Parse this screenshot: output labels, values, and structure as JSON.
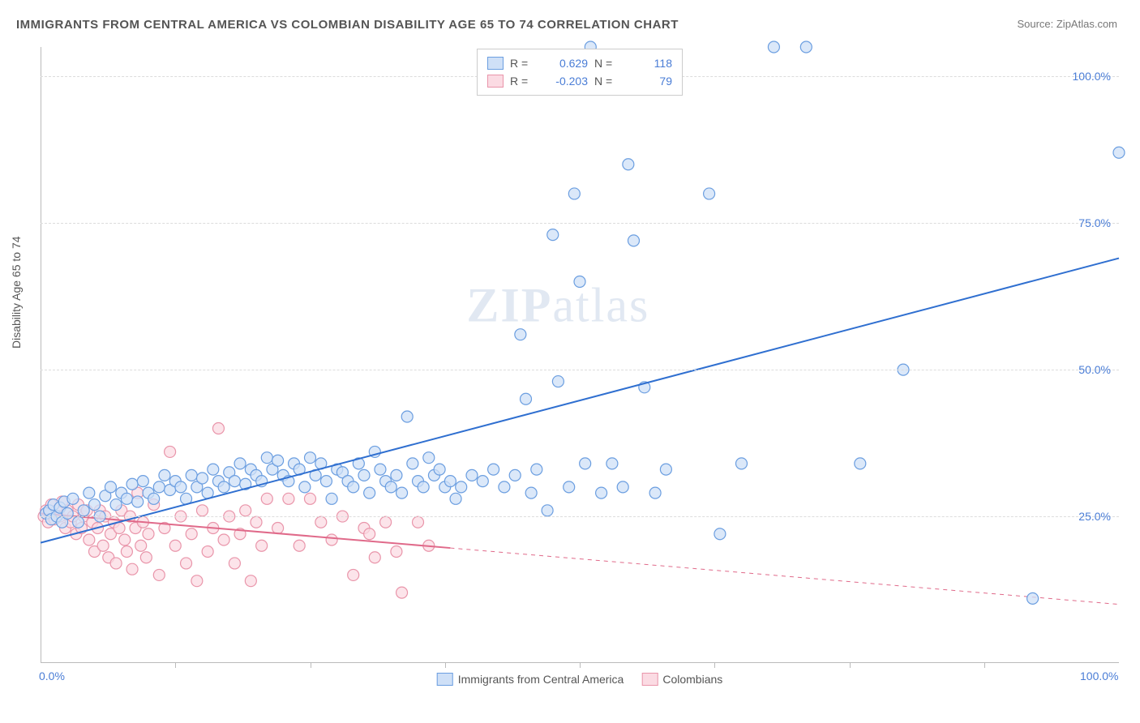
{
  "title": "IMMIGRANTS FROM CENTRAL AMERICA VS COLOMBIAN DISABILITY AGE 65 TO 74 CORRELATION CHART",
  "source": "Source: ZipAtlas.com",
  "ylabel": "Disability Age 65 to 74",
  "watermark_a": "ZIP",
  "watermark_b": "atlas",
  "chart": {
    "type": "scatter",
    "xlim": [
      0,
      100
    ],
    "ylim": [
      0,
      105
    ],
    "ytick_labels": [
      "25.0%",
      "50.0%",
      "75.0%",
      "100.0%"
    ],
    "ytick_values": [
      25,
      50,
      75,
      100
    ],
    "xtick_labels": [
      "0.0%",
      "100.0%"
    ],
    "xtick_values": [
      0,
      100
    ],
    "xtick_minor": [
      12.5,
      25,
      37.5,
      50,
      62.5,
      75,
      87.5
    ],
    "grid_color": "#dcdcdc",
    "axis_color": "#bbbbbb",
    "text_color_axis": "#4a7dd6",
    "marker_radius": 7,
    "marker_stroke_width": 1.2,
    "line_width": 2
  },
  "series_a": {
    "name": "Immigrants from Central America",
    "r_value": "0.629",
    "n_value": "118",
    "fill": "#cfe0f7",
    "stroke": "#6b9ee0",
    "line_color": "#2f6fd0",
    "trend": {
      "x1": 0,
      "y1": 20.5,
      "x2": 100,
      "y2": 69,
      "solid_until_x": 100
    },
    "points": [
      [
        0.5,
        25.5
      ],
      [
        0.8,
        26
      ],
      [
        1,
        24.5
      ],
      [
        1.2,
        27
      ],
      [
        1.5,
        25
      ],
      [
        1.8,
        26.5
      ],
      [
        2,
        24
      ],
      [
        2.2,
        27.5
      ],
      [
        2.5,
        25.5
      ],
      [
        3,
        28
      ],
      [
        3.5,
        24
      ],
      [
        4,
        26
      ],
      [
        4.5,
        29
      ],
      [
        5,
        27
      ],
      [
        5.5,
        25
      ],
      [
        6,
        28.5
      ],
      [
        6.5,
        30
      ],
      [
        7,
        27
      ],
      [
        7.5,
        29
      ],
      [
        8,
        28
      ],
      [
        8.5,
        30.5
      ],
      [
        9,
        27.5
      ],
      [
        9.5,
        31
      ],
      [
        10,
        29
      ],
      [
        10.5,
        28
      ],
      [
        11,
        30
      ],
      [
        11.5,
        32
      ],
      [
        12,
        29.5
      ],
      [
        12.5,
        31
      ],
      [
        13,
        30
      ],
      [
        13.5,
        28
      ],
      [
        14,
        32
      ],
      [
        14.5,
        30
      ],
      [
        15,
        31.5
      ],
      [
        15.5,
        29
      ],
      [
        16,
        33
      ],
      [
        16.5,
        31
      ],
      [
        17,
        30
      ],
      [
        17.5,
        32.5
      ],
      [
        18,
        31
      ],
      [
        18.5,
        34
      ],
      [
        19,
        30.5
      ],
      [
        19.5,
        33
      ],
      [
        20,
        32
      ],
      [
        20.5,
        31
      ],
      [
        21,
        35
      ],
      [
        21.5,
        33
      ],
      [
        22,
        34.5
      ],
      [
        22.5,
        32
      ],
      [
        23,
        31
      ],
      [
        23.5,
        34
      ],
      [
        24,
        33
      ],
      [
        24.5,
        30
      ],
      [
        25,
        35
      ],
      [
        25.5,
        32
      ],
      [
        26,
        34
      ],
      [
        26.5,
        31
      ],
      [
        27,
        28
      ],
      [
        27.5,
        33
      ],
      [
        28,
        32.5
      ],
      [
        28.5,
        31
      ],
      [
        29,
        30
      ],
      [
        29.5,
        34
      ],
      [
        30,
        32
      ],
      [
        30.5,
        29
      ],
      [
        31,
        36
      ],
      [
        31.5,
        33
      ],
      [
        32,
        31
      ],
      [
        32.5,
        30
      ],
      [
        33,
        32
      ],
      [
        33.5,
        29
      ],
      [
        34,
        42
      ],
      [
        34.5,
        34
      ],
      [
        35,
        31
      ],
      [
        35.5,
        30
      ],
      [
        36,
        35
      ],
      [
        36.5,
        32
      ],
      [
        37,
        33
      ],
      [
        37.5,
        30
      ],
      [
        38,
        31
      ],
      [
        38.5,
        28
      ],
      [
        39,
        30
      ],
      [
        40,
        32
      ],
      [
        41,
        31
      ],
      [
        42,
        33
      ],
      [
        43,
        30
      ],
      [
        44,
        32
      ],
      [
        44.5,
        56
      ],
      [
        45,
        45
      ],
      [
        45.5,
        29
      ],
      [
        46,
        33
      ],
      [
        47,
        26
      ],
      [
        47.5,
        73
      ],
      [
        48,
        48
      ],
      [
        49,
        30
      ],
      [
        49.5,
        80
      ],
      [
        50,
        65
      ],
      [
        50.5,
        34
      ],
      [
        51,
        105
      ],
      [
        52,
        29
      ],
      [
        53,
        34
      ],
      [
        54,
        30
      ],
      [
        54.5,
        85
      ],
      [
        55,
        72
      ],
      [
        56,
        47
      ],
      [
        57,
        29
      ],
      [
        58,
        33
      ],
      [
        62,
        80
      ],
      [
        63,
        22
      ],
      [
        65,
        34
      ],
      [
        68,
        105
      ],
      [
        71,
        105
      ],
      [
        76,
        34
      ],
      [
        80,
        50
      ],
      [
        92,
        11
      ],
      [
        100,
        87
      ]
    ]
  },
  "series_b": {
    "name": "Colombians",
    "r_value": "-0.203",
    "n_value": "79",
    "fill": "#fbdbe3",
    "stroke": "#e995aa",
    "line_color": "#e06a8a",
    "trend": {
      "x1": 0,
      "y1": 25.5,
      "x2": 100,
      "y2": 10,
      "solid_until_x": 38
    },
    "points": [
      [
        0.3,
        25
      ],
      [
        0.5,
        26
      ],
      [
        0.7,
        24
      ],
      [
        0.9,
        25.5
      ],
      [
        1,
        27
      ],
      [
        1.3,
        24.5
      ],
      [
        1.5,
        26
      ],
      [
        1.8,
        25
      ],
      [
        2,
        27.5
      ],
      [
        2.3,
        23
      ],
      [
        2.5,
        26
      ],
      [
        2.8,
        24
      ],
      [
        3,
        25
      ],
      [
        3.3,
        22
      ],
      [
        3.5,
        27
      ],
      [
        3.8,
        23
      ],
      [
        4,
        25
      ],
      [
        4.3,
        26
      ],
      [
        4.5,
        21
      ],
      [
        4.8,
        24
      ],
      [
        5,
        19
      ],
      [
        5.3,
        23
      ],
      [
        5.5,
        26
      ],
      [
        5.8,
        20
      ],
      [
        6,
        25
      ],
      [
        6.3,
        18
      ],
      [
        6.5,
        22
      ],
      [
        6.8,
        24
      ],
      [
        7,
        17
      ],
      [
        7.3,
        23
      ],
      [
        7.5,
        26
      ],
      [
        7.8,
        21
      ],
      [
        8,
        19
      ],
      [
        8.3,
        25
      ],
      [
        8.5,
        16
      ],
      [
        8.8,
        23
      ],
      [
        9,
        29
      ],
      [
        9.3,
        20
      ],
      [
        9.5,
        24
      ],
      [
        9.8,
        18
      ],
      [
        10,
        22
      ],
      [
        10.5,
        27
      ],
      [
        11,
        15
      ],
      [
        11.5,
        23
      ],
      [
        12,
        36
      ],
      [
        12.5,
        20
      ],
      [
        13,
        25
      ],
      [
        13.5,
        17
      ],
      [
        14,
        22
      ],
      [
        14.5,
        14
      ],
      [
        15,
        26
      ],
      [
        15.5,
        19
      ],
      [
        16,
        23
      ],
      [
        16.5,
        40
      ],
      [
        17,
        21
      ],
      [
        17.5,
        25
      ],
      [
        18,
        17
      ],
      [
        18.5,
        22
      ],
      [
        19,
        26
      ],
      [
        19.5,
        14
      ],
      [
        20,
        24
      ],
      [
        20.5,
        20
      ],
      [
        21,
        28
      ],
      [
        22,
        23
      ],
      [
        23,
        28
      ],
      [
        24,
        20
      ],
      [
        25,
        28
      ],
      [
        26,
        24
      ],
      [
        27,
        21
      ],
      [
        28,
        25
      ],
      [
        29,
        15
      ],
      [
        30,
        23
      ],
      [
        30.5,
        22
      ],
      [
        31,
        18
      ],
      [
        32,
        24
      ],
      [
        33,
        19
      ],
      [
        33.5,
        12
      ],
      [
        35,
        24
      ],
      [
        36,
        20
      ]
    ]
  },
  "legend_bottom": {
    "a_label": "Immigrants from Central America",
    "b_label": "Colombians"
  },
  "legend_top": {
    "r_label": "R =",
    "n_label": "N ="
  }
}
